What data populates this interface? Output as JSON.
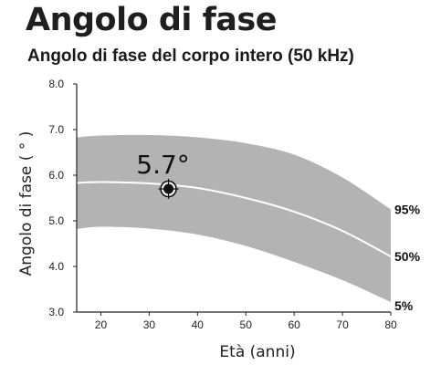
{
  "header": {
    "title": "Angolo di fase"
  },
  "chart_data": {
    "type": "area",
    "title": "Angolo di fase del corpo intero (50 kHz)",
    "xlabel": "Età (anni)",
    "ylabel": "Angolo di fase ( ° )",
    "xlim": [
      15,
      80
    ],
    "ylim": [
      3.0,
      8.0
    ],
    "x_ticks": [
      "20",
      "30",
      "40",
      "50",
      "60",
      "70",
      "80"
    ],
    "y_ticks": [
      "3.0",
      "4.0",
      "5.0",
      "6.0",
      "7.0",
      "8.0"
    ],
    "grid": false,
    "band_color": "#b3b3b3",
    "median_color": "#ffffff",
    "series": [
      {
        "name": "95%",
        "x": [
          15,
          20,
          30,
          40,
          50,
          60,
          70,
          80
        ],
        "y": [
          6.83,
          6.87,
          6.88,
          6.83,
          6.7,
          6.45,
          5.95,
          5.25
        ]
      },
      {
        "name": "50%",
        "x": [
          15,
          20,
          30,
          40,
          50,
          60,
          70,
          80
        ],
        "y": [
          5.83,
          5.85,
          5.82,
          5.72,
          5.5,
          5.2,
          4.78,
          4.22
        ]
      },
      {
        "name": "5%",
        "x": [
          15,
          20,
          30,
          40,
          50,
          60,
          70,
          80
        ],
        "y": [
          4.82,
          4.87,
          4.83,
          4.7,
          4.45,
          4.1,
          3.7,
          3.22
        ]
      }
    ],
    "marker": {
      "x": 34,
      "y": 5.7,
      "label": "5.7°"
    }
  }
}
